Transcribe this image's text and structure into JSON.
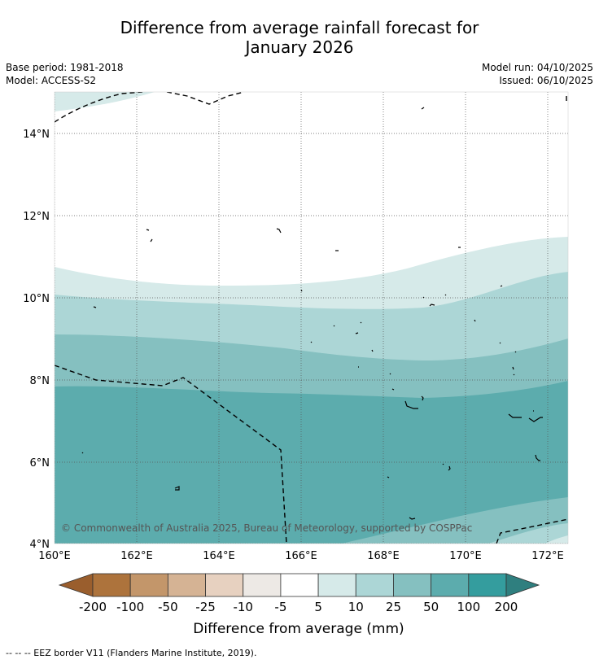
{
  "title": {
    "line1": "Difference from average rainfall forecast for",
    "line2": "January 2026"
  },
  "meta": {
    "base_period": "Base period: 1981-2018",
    "model": "Model: ACCESS-S2",
    "model_run": "Model run: 04/10/2025",
    "issued": "Issued: 06/10/2025"
  },
  "map": {
    "lon_ticks": [
      "160°E",
      "162°E",
      "164°E",
      "166°E",
      "168°E",
      "170°E",
      "172°E"
    ],
    "lat_ticks": [
      "4°N",
      "6°N",
      "8°N",
      "10°N",
      "12°N",
      "14°N"
    ],
    "copyright": "© Commonwealth of Australia 2025, Bureau of Meteorology, supported by COSPPac"
  },
  "legend": {
    "labels": [
      "-200",
      "-100",
      "-50",
      "-25",
      "-10",
      "-5",
      "5",
      "10",
      "25",
      "50",
      "100",
      "200"
    ],
    "colors": [
      "#ad733c",
      "#c3966a",
      "#d5b394",
      "#e7d1c0",
      "#ede9e5",
      "#ffffff",
      "#d6eae9",
      "#acd6d6",
      "#85c0c0",
      "#5cacad",
      "#349d9e"
    ],
    "low_color": "#9a5e2d",
    "high_color": "#2f7f7f",
    "title": "Difference from average (mm)"
  },
  "footer": {
    "eez_label": "--  --  -- EEZ border V11 (Flanders Marine Institute, 2019)."
  }
}
